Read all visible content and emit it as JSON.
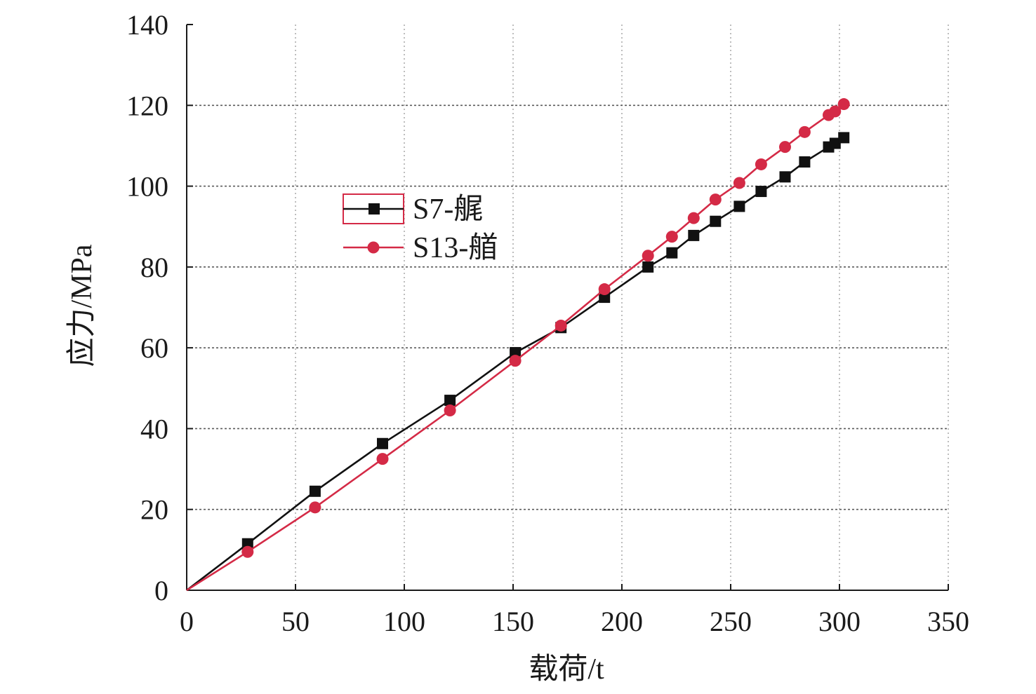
{
  "chart_data": {
    "type": "line",
    "title": "",
    "xlabel": "载荷/t",
    "ylabel": "应力/MPa",
    "xlim": [
      0,
      350
    ],
    "ylim": [
      0,
      140
    ],
    "xticks": [
      0,
      50,
      100,
      150,
      200,
      250,
      300,
      350
    ],
    "yticks": [
      0,
      20,
      40,
      60,
      80,
      100,
      120,
      140
    ],
    "grid": "dotted, both axes (vertical dotted lines at x ticks, horizontal dotted lines at y ticks)",
    "legend_position": "upper-left, inside plot",
    "series": [
      {
        "name": "S7-艉",
        "color": "#111111",
        "marker": "square",
        "x": [
          0,
          28,
          59,
          90,
          121,
          151,
          172,
          192,
          212,
          223,
          233,
          243,
          254,
          264,
          275,
          284,
          295,
          298,
          302
        ],
        "y": [
          0,
          11.5,
          24.5,
          36.3,
          47,
          58.8,
          65,
          72.5,
          80,
          83.5,
          87.8,
          91.3,
          95,
          98.7,
          102.3,
          106,
          109.7,
          110.6,
          112
        ]
      },
      {
        "name": "S13-艏",
        "color": "#d42a46",
        "marker": "circle",
        "x": [
          0,
          28,
          59,
          90,
          121,
          151,
          172,
          192,
          212,
          223,
          233,
          243,
          254,
          264,
          275,
          284,
          295,
          298,
          302
        ],
        "y": [
          0,
          9.5,
          20.5,
          32.5,
          44.5,
          56.8,
          65.5,
          74.5,
          82.8,
          87.5,
          92.1,
          96.7,
          100.8,
          105.4,
          109.7,
          113.4,
          117.6,
          118.5,
          120.3
        ]
      }
    ]
  }
}
